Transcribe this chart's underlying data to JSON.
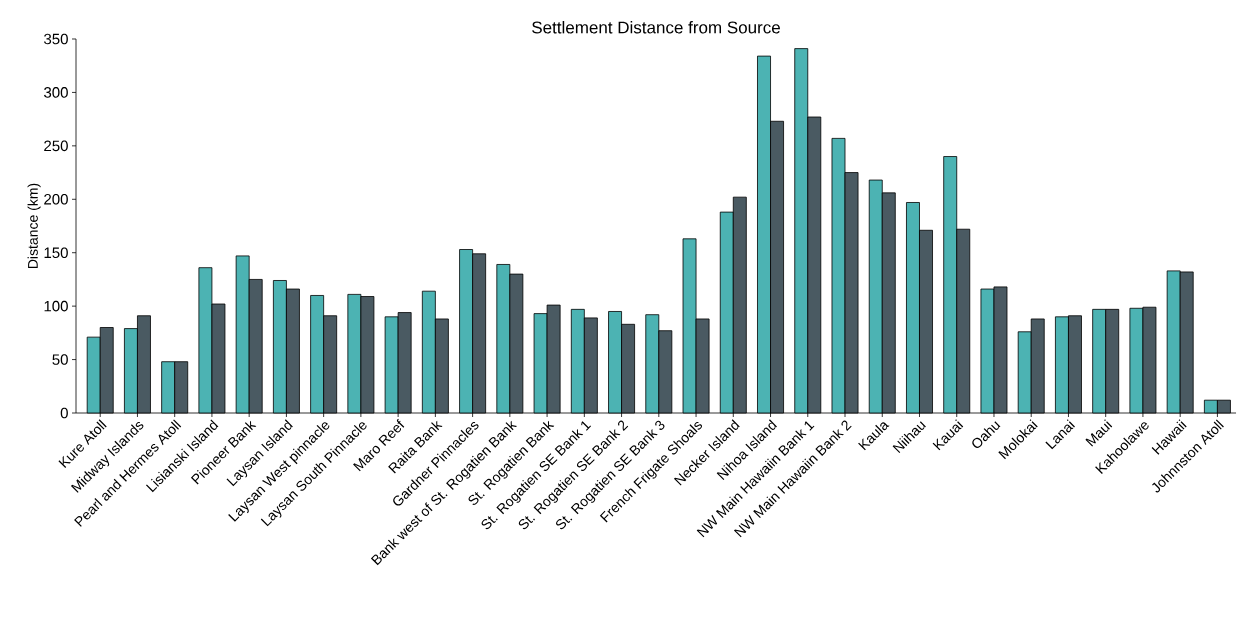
{
  "chart_data": {
    "type": "bar",
    "title": "Settlement Distance from Source",
    "ylabel": "Distance (km)",
    "categories": [
      "Kure Atoll",
      "Midway Islands",
      "Pearl and Hermes Atoll",
      "Lisianski Island",
      "Pioneer Bank",
      "Laysan Island",
      "Laysan West pinnacle",
      "Laysan South Pinnacle",
      "Maro Reef",
      "Raita Bank",
      "Gardner Pinnacles",
      "Bank west of St. Rogatien Bank",
      "St. Rogatien Bank",
      "St. Rogatien SE Bank 1",
      "St. Rogatien SE Bank 2",
      "St. Rogatien SE Bank 3",
      "French Frigate Shoals",
      "Necker Island",
      "Nihoa Island",
      "NW Main Hawaiin Bank 1",
      "NW Main Hawaiin Bank 2",
      "Kaula",
      "Niihau",
      "Kauai",
      "Oahu",
      "Molokai",
      "Lanai",
      "Maui",
      "Kahoolawe",
      "Hawaii",
      "Johnnston Atoll"
    ],
    "series": [
      {
        "color": "#4cb3b3",
        "values": [
          71,
          79,
          48,
          136,
          147,
          124,
          110,
          111,
          90,
          114,
          153,
          139,
          93,
          97,
          95,
          92,
          163,
          188,
          334,
          341,
          257,
          218,
          197,
          240,
          116,
          76,
          90,
          97,
          98,
          133,
          12
        ]
      },
      {
        "color": "#4a5a62",
        "values": [
          80,
          91,
          48,
          102,
          125,
          116,
          91,
          109,
          94,
          88,
          149,
          130,
          101,
          89,
          83,
          77,
          88,
          202,
          273,
          277,
          225,
          206,
          171,
          172,
          118,
          88,
          91,
          97,
          99,
          132,
          12
        ]
      }
    ],
    "ylim": [
      0,
      350
    ],
    "yticks": [
      0,
      50,
      100,
      150,
      200,
      250,
      300,
      350
    ],
    "grid": false
  }
}
